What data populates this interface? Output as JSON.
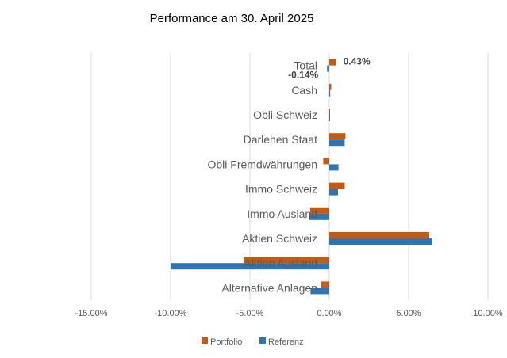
{
  "chart_data": {
    "type": "bar",
    "orientation": "horizontal",
    "title": "Performance am 30. April 2025",
    "categories": [
      "Total",
      "Cash",
      "Obli Schweiz",
      "Darlehen Staat",
      "Obli Fremdwährungen",
      "Immo Schweiz",
      "Immo Ausland",
      "Aktien Schweiz",
      "Aktien Ausland",
      "Alternative Anlagen"
    ],
    "series": [
      {
        "name": "Portfolio",
        "color": "#C55A11",
        "values": [
          0.43,
          0.12,
          0.03,
          1.02,
          -0.38,
          0.97,
          -1.2,
          6.3,
          -5.4,
          -0.52
        ]
      },
      {
        "name": "Referenz",
        "color": "#2E75B6",
        "values": [
          -0.14,
          0.06,
          0.04,
          0.97,
          0.58,
          0.55,
          -1.25,
          6.5,
          -10.0,
          -1.18
        ]
      }
    ],
    "xlim": [
      -15,
      10
    ],
    "xticks": [
      "-15.00%",
      "-10.00%",
      "-5.00%",
      "0.00%",
      "5.00%",
      "10.00%"
    ],
    "xtick_values": [
      -15,
      -10,
      -5,
      0,
      5,
      10
    ],
    "data_labels": [
      {
        "category": "Total",
        "series": "Portfolio",
        "text": "0.43%"
      },
      {
        "category": "Total",
        "series": "Referenz",
        "text": "-0.14%"
      }
    ],
    "grid": true,
    "legend_position": "bottom"
  }
}
